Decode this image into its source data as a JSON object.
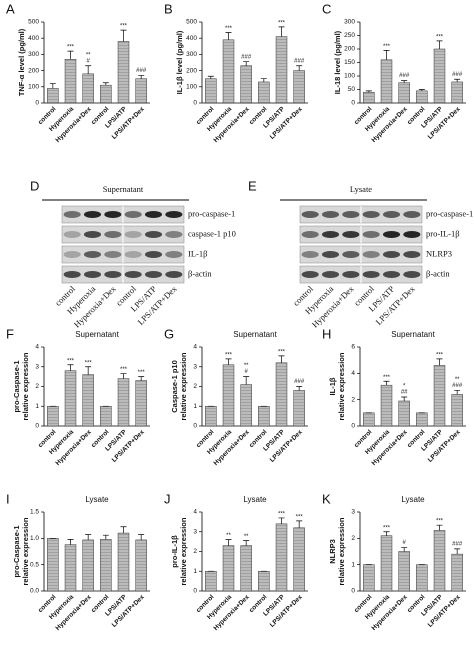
{
  "chart_data": [
    {
      "type": "bar",
      "panel": "A",
      "ylabel": [
        "TNF-α level (pg/ml)"
      ],
      "categories": [
        "control",
        "Hyperoxia",
        "Hyperoxia+Dex",
        "control",
        "LPS/ATP",
        "LPS/ATP+Dex"
      ],
      "values": [
        90,
        270,
        180,
        110,
        380,
        150
      ],
      "errors": [
        30,
        50,
        50,
        15,
        70,
        20
      ],
      "stars": [
        null,
        "***",
        "**",
        null,
        "***",
        null
      ],
      "hashes": [
        null,
        null,
        "#",
        null,
        null,
        "###"
      ],
      "color": "#a8a8a8",
      "ylim": [
        0,
        500
      ],
      "yticks": [
        0,
        100,
        200,
        300,
        400,
        500
      ]
    },
    {
      "type": "bar",
      "panel": "B",
      "ylabel": [
        "IL-1β level (pg/ml)"
      ],
      "categories": [
        "control",
        "Hyperoxia",
        "Hyperoxia+Dex",
        "control",
        "LPS/ATP",
        "LPS/ATP+Dex"
      ],
      "values": [
        150,
        390,
        230,
        130,
        410,
        200
      ],
      "errors": [
        15,
        45,
        25,
        20,
        60,
        30
      ],
      "stars": [
        null,
        "***",
        null,
        null,
        "***",
        null
      ],
      "hashes": [
        null,
        null,
        "###",
        null,
        null,
        "###"
      ],
      "color": "#a8a8a8",
      "ylim": [
        0,
        500
      ],
      "yticks": [
        0,
        100,
        200,
        300,
        400,
        500
      ]
    },
    {
      "type": "bar",
      "panel": "C",
      "ylabel": [
        "IL-18 level (pg/ml)"
      ],
      "categories": [
        "control",
        "Hyperoxia",
        "Hyperoxia+Dex",
        "control",
        "LPS/ATP",
        "LPS/ATP+Dex"
      ],
      "values": [
        40,
        160,
        75,
        45,
        200,
        78
      ],
      "errors": [
        5,
        35,
        8,
        5,
        30,
        10
      ],
      "stars": [
        null,
        "***",
        null,
        null,
        "***",
        null
      ],
      "hashes": [
        null,
        null,
        "###",
        null,
        null,
        "###"
      ],
      "color": "#a8a8a8",
      "ylim": [
        0,
        300
      ],
      "yticks": [
        0,
        50,
        100,
        150,
        200,
        250,
        300
      ]
    },
    {
      "type": "bar",
      "panel": "F",
      "subtitle": "Supernatant",
      "ylabel": [
        "pro-Caspase-1",
        "relative expression"
      ],
      "categories": [
        "control",
        "Hyperoxia",
        "Hyperoxia+Dex",
        "control",
        "LPS/ATP",
        "LPS/ATP+Dex"
      ],
      "values": [
        1,
        2.8,
        2.6,
        1,
        2.4,
        2.3
      ],
      "errors": [
        0,
        0.3,
        0.4,
        0,
        0.25,
        0.2
      ],
      "stars": [
        null,
        "***",
        "***",
        null,
        "***",
        "***"
      ],
      "hashes": [
        null,
        null,
        null,
        null,
        null,
        null
      ],
      "color": "#a8a8a8",
      "ylim": [
        0,
        4
      ],
      "yticks": [
        0,
        1,
        2,
        3,
        4
      ]
    },
    {
      "type": "bar",
      "panel": "G",
      "subtitle": "Supernatant",
      "ylabel": [
        "Caspase-1 p10",
        "relative expression"
      ],
      "categories": [
        "control",
        "Hyperoxia",
        "Hyperoxia+Dex",
        "control",
        "LPS/ATP",
        "LPS/ATP+Dex"
      ],
      "values": [
        1,
        3.1,
        2.1,
        1,
        3.2,
        1.8
      ],
      "errors": [
        0,
        0.3,
        0.4,
        0,
        0.35,
        0.2
      ],
      "stars": [
        null,
        "***",
        "**",
        null,
        "***",
        null
      ],
      "hashes": [
        null,
        null,
        "#",
        null,
        null,
        "###"
      ],
      "color": "#a8a8a8",
      "ylim": [
        0,
        4
      ],
      "yticks": [
        0,
        1,
        2,
        3,
        4
      ]
    },
    {
      "type": "bar",
      "panel": "H",
      "subtitle": "Supernatant",
      "ylabel": [
        "IL-1β",
        "relative expression"
      ],
      "categories": [
        "control",
        "Hyperoxia",
        "Hyperoxia+Dex",
        "control",
        "LPS/ATP",
        "LPS/ATP+Dex"
      ],
      "values": [
        1,
        3.1,
        1.9,
        1,
        4.6,
        2.4
      ],
      "errors": [
        0,
        0.3,
        0.3,
        0,
        0.5,
        0.3
      ],
      "stars": [
        null,
        "***",
        "*",
        null,
        "***",
        "**"
      ],
      "hashes": [
        null,
        null,
        "##",
        null,
        null,
        "###"
      ],
      "color": "#a8a8a8",
      "ylim": [
        0,
        6
      ],
      "yticks": [
        0,
        2,
        4,
        6
      ]
    },
    {
      "type": "bar",
      "panel": "I",
      "subtitle": "Lysate",
      "ylabel": [
        "pro-Caspase-1",
        "relative expression"
      ],
      "categories": [
        "control",
        "Hyperoxia",
        "Hyperoxia+Dex",
        "control",
        "LPS/ATP",
        "LPS/ATP+Dex"
      ],
      "values": [
        1,
        0.88,
        0.97,
        0.98,
        1.1,
        0.97
      ],
      "errors": [
        0,
        0.1,
        0.1,
        0.08,
        0.12,
        0.1
      ],
      "stars": [
        null,
        null,
        null,
        null,
        null,
        null
      ],
      "hashes": [
        null,
        null,
        null,
        null,
        null,
        null
      ],
      "color": "#a8a8a8",
      "ylim": [
        0,
        1.5
      ],
      "yticks": [
        {
          "value": 0,
          "label": "0.0"
        },
        0.5,
        {
          "value": 1,
          "label": "1.0"
        },
        1.5
      ]
    },
    {
      "type": "bar",
      "panel": "J",
      "subtitle": "Lysate",
      "ylabel": [
        "pro-IL-1β",
        "relative expression"
      ],
      "categories": [
        "control",
        "Hyperoxia",
        "Hyperoxia+Dex",
        "control",
        "LPS/ATP",
        "LPS/ATP+Dex"
      ],
      "values": [
        1,
        2.3,
        2.3,
        1,
        3.4,
        3.2
      ],
      "errors": [
        0,
        0.3,
        0.25,
        0,
        0.3,
        0.35
      ],
      "stars": [
        null,
        "**",
        "**",
        null,
        "***",
        "***"
      ],
      "hashes": [
        null,
        null,
        null,
        null,
        null,
        null
      ],
      "color": "#a8a8a8",
      "ylim": [
        0,
        4
      ],
      "yticks": [
        0,
        1,
        2,
        3,
        4
      ]
    },
    {
      "type": "bar",
      "panel": "K",
      "subtitle": "Lysate",
      "ylabel": [
        "NLRP3",
        "relative expression"
      ],
      "categories": [
        "control",
        "Hyperoxia",
        "Hyperoxia+Dex",
        "control",
        "LPS/ATP",
        "LPS/ATP+Dex"
      ],
      "values": [
        1,
        2.1,
        1.5,
        1,
        2.3,
        1.4
      ],
      "errors": [
        0,
        0.15,
        0.15,
        0,
        0.2,
        0.2
      ],
      "stars": [
        null,
        "***",
        null,
        null,
        "***",
        null
      ],
      "hashes": [
        null,
        null,
        "#",
        null,
        null,
        "###"
      ],
      "color": "#a8a8a8",
      "ylim": [
        0,
        3
      ],
      "yticks": [
        0,
        1,
        2,
        3
      ]
    }
  ],
  "blots": [
    {
      "panel": "D",
      "title": "Supernatant",
      "rows": [
        "pro-caspase-1",
        "caspase-1 p10",
        "IL-1β",
        "β-actin"
      ],
      "lanes": [
        "control",
        "Hyperoxia",
        "Hyperoxia+Dex",
        "control",
        "LPS/ATP",
        "LPS/ATP+Dex"
      ]
    },
    {
      "panel": "E",
      "title": "Lysate",
      "rows": [
        "pro-caspase-1",
        "pro-IL-1β",
        "NLRP3",
        "β-actin"
      ],
      "lanes": [
        "control",
        "Hyperoxia",
        "Hyperoxia+Dex",
        "control",
        "LPS/ATP",
        "LPS/ATP+Dex"
      ]
    }
  ]
}
